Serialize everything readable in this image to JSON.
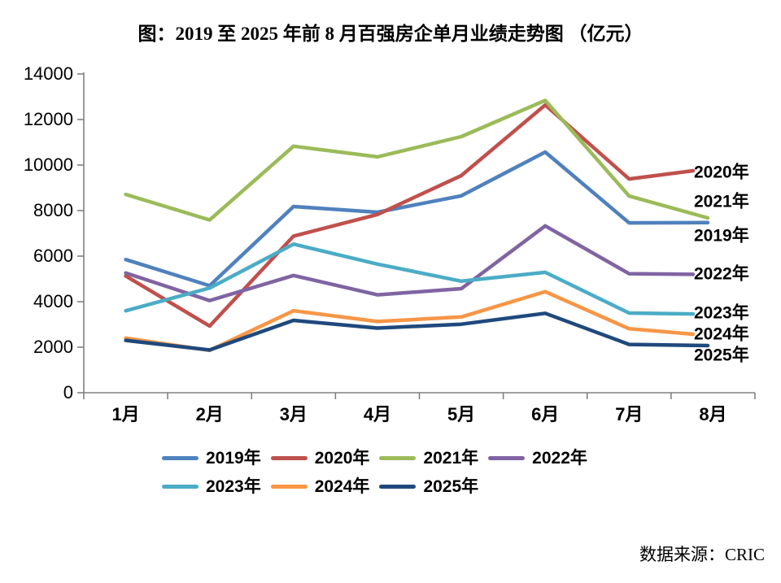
{
  "title": "图：2019 至 2025 年前 8 月百强房企单月业绩走势图 （亿元）",
  "source": "数据来源：CRIC",
  "chart_data": {
    "type": "line",
    "title": "图：2019 至 2025 年前 8 月百强房企单月业绩走势图 （亿元）",
    "unit": "亿元",
    "xlabel": "",
    "ylabel": "",
    "categories": [
      "1月",
      "2月",
      "3月",
      "4月",
      "5月",
      "6月",
      "7月",
      "8月"
    ],
    "ylim": [
      0,
      14000
    ],
    "y_ticks": [
      0,
      2000,
      4000,
      6000,
      8000,
      10000,
      12000,
      14000
    ],
    "grid": false,
    "legend_position": "bottom-left",
    "axis_color": "#808080",
    "text_color": "#000000",
    "series": [
      {
        "name": "2019年",
        "color": "#4F81BD",
        "values": [
          5850,
          4700,
          8180,
          7930,
          8650,
          10570,
          7460,
          7470
        ],
        "label_y": 290
      },
      {
        "name": "2020年",
        "color": "#C0504D",
        "values": [
          5130,
          2930,
          6880,
          7830,
          9540,
          12640,
          9390,
          9750
        ],
        "label_y": 212
      },
      {
        "name": "2021年",
        "color": "#9BBB59",
        "values": [
          8710,
          7590,
          10830,
          10360,
          11250,
          12840,
          8640,
          7680
        ],
        "label_y": 248
      },
      {
        "name": "2022年",
        "color": "#8064A2",
        "values": [
          5260,
          4050,
          5150,
          4300,
          4570,
          7330,
          5230,
          5200
        ],
        "label_y": 337
      },
      {
        "name": "2023年",
        "color": "#4BACC6",
        "values": [
          3600,
          4600,
          6530,
          5650,
          4900,
          5290,
          3500,
          3460
        ],
        "label_y": 385
      },
      {
        "name": "2024年",
        "color": "#F79646",
        "values": [
          2400,
          1860,
          3600,
          3130,
          3330,
          4440,
          2810,
          2570
        ],
        "label_y": 411
      },
      {
        "name": "2025年",
        "color": "#1F497D",
        "values": [
          2300,
          1880,
          3180,
          2840,
          3010,
          3490,
          2120,
          2070
        ],
        "label_y": 437
      }
    ],
    "legend_rows": [
      [
        "2019年",
        "2020年",
        "2021年",
        "2022年"
      ],
      [
        "2023年",
        "2024年",
        "2025年"
      ]
    ]
  }
}
